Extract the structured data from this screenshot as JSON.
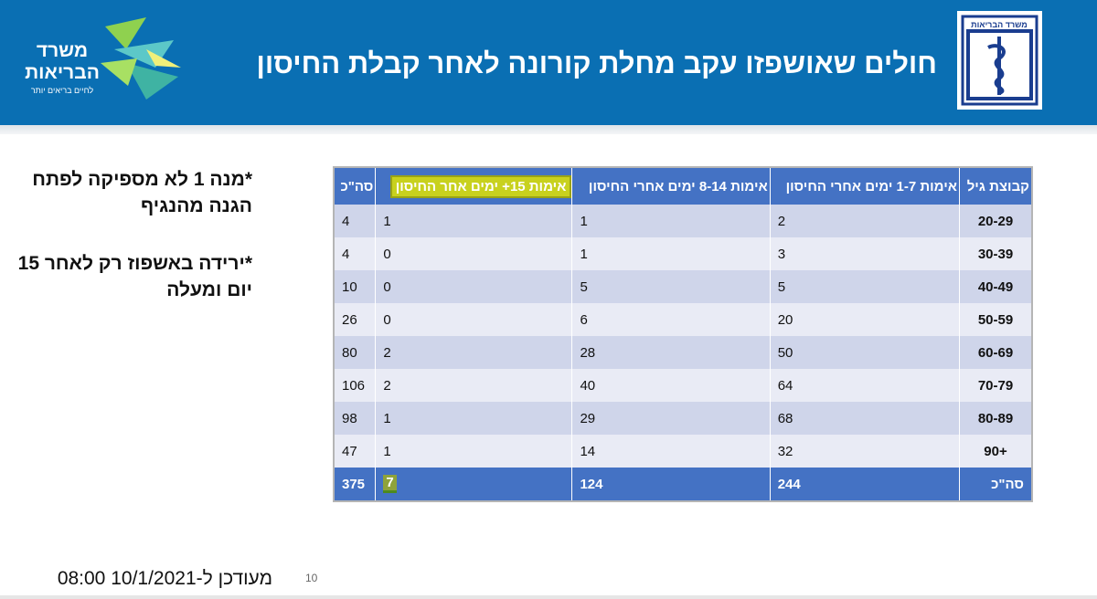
{
  "header": {
    "title": "חולים שאושפזו עקב מחלת קורונה לאחר קבלת החיסון",
    "ministry_logo": {
      "line1": "משרד",
      "line2": "הבריאות",
      "tagline": "לחיים בריאים יותר"
    },
    "emblem_text": "משרד הבריאות"
  },
  "notes": [
    "*מנה 1 לא מספיקה לפתח הגנה מהנגיף",
    "*ירידה באשפוז רק לאחר 15 יום ומעלה"
  ],
  "table": {
    "headers": [
      "קבוצת גיל",
      "אימות 1-7 ימים אחרי החיסון",
      "אימות 8-14 ימים אחרי החיסון",
      "אימות 15+ ימים אחר החיסון",
      "סה\"כ"
    ],
    "rows": [
      {
        "age": "20-29",
        "d1_7": "2",
        "d8_14": "1",
        "d15": "1",
        "total": "4"
      },
      {
        "age": "30-39",
        "d1_7": "3",
        "d8_14": "1",
        "d15": "0",
        "total": "4"
      },
      {
        "age": "40-49",
        "d1_7": "5",
        "d8_14": "5",
        "d15": "0",
        "total": "10"
      },
      {
        "age": "50-59",
        "d1_7": "20",
        "d8_14": "6",
        "d15": "0",
        "total": "26"
      },
      {
        "age": "60-69",
        "d1_7": "50",
        "d8_14": "28",
        "d15": "2",
        "total": "80"
      },
      {
        "age": "70-79",
        "d1_7": "64",
        "d8_14": "40",
        "d15": "2",
        "total": "106"
      },
      {
        "age": "80-89",
        "d1_7": "68",
        "d8_14": "29",
        "d15": "1",
        "total": "98"
      },
      {
        "age": "+90",
        "d1_7": "32",
        "d8_14": "14",
        "d15": "1",
        "total": "47"
      }
    ],
    "totals": {
      "label": "סה\"כ",
      "d1_7": "244",
      "d8_14": "124",
      "d15": "7",
      "total": "375"
    }
  },
  "footer": {
    "updated": "מעודכן ל-10/1/2021 08:00",
    "page_number": "10"
  },
  "colors": {
    "header_blue": "#0a6fb3",
    "table_header": "#4472c4",
    "row_dark": "#cfd5ea",
    "row_light": "#e9ebf5",
    "highlight": "#c8d11e"
  }
}
